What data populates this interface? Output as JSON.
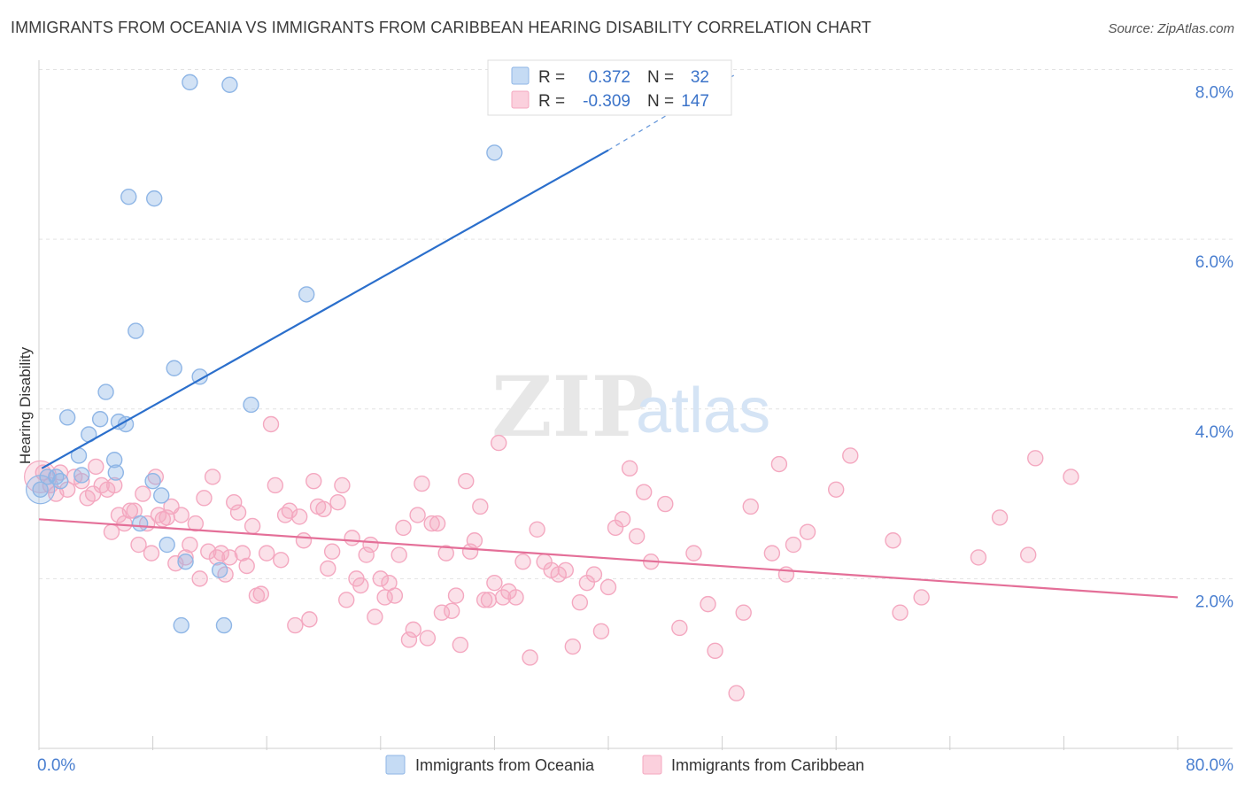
{
  "title": "IMMIGRANTS FROM OCEANIA VS IMMIGRANTS FROM CARIBBEAN HEARING DISABILITY CORRELATION CHART",
  "source": "Source: ZipAtlas.com",
  "watermark": {
    "zip": "ZIP",
    "atlas": "atlas"
  },
  "chart_data": {
    "type": "scatter",
    "xlabel": "",
    "ylabel": "Hearing Disability",
    "xlim": [
      0,
      80
    ],
    "ylim": [
      0,
      8.2
    ],
    "x_tick_labels": {
      "min": "0.0%",
      "max": "80.0%"
    },
    "y_ticks": [
      {
        "value": 2,
        "label": "2.0%"
      },
      {
        "value": 4,
        "label": "4.0%"
      },
      {
        "value": 6,
        "label": "6.0%"
      },
      {
        "value": 8,
        "label": "8.0%"
      }
    ],
    "grid": true,
    "legend_position": "top-center",
    "series": [
      {
        "name": "Immigrants from Oceania",
        "color": "#8fb6e6",
        "line_color": "#2b6fcc",
        "R": "0.372",
        "N": "32",
        "trend": {
          "x": [
            0.2,
            40
          ],
          "y": [
            3.3,
            7.05
          ],
          "dashed_to": {
            "x": 49,
            "y": 7.95
          }
        },
        "points": [
          [
            0.1,
            3.05
          ],
          [
            0.6,
            3.2
          ],
          [
            1.2,
            3.2
          ],
          [
            2.0,
            3.9
          ],
          [
            2.8,
            3.45
          ],
          [
            3.5,
            3.7
          ],
          [
            4.3,
            3.88
          ],
          [
            4.7,
            4.2
          ],
          [
            5.3,
            3.4
          ],
          [
            5.4,
            3.25
          ],
          [
            5.6,
            3.85
          ],
          [
            6.1,
            3.82
          ],
          [
            6.3,
            6.5
          ],
          [
            6.8,
            4.92
          ],
          [
            7.1,
            2.65
          ],
          [
            8.0,
            3.15
          ],
          [
            8.1,
            6.48
          ],
          [
            8.6,
            2.98
          ],
          [
            9.0,
            2.4
          ],
          [
            9.5,
            4.48
          ],
          [
            10.0,
            1.45
          ],
          [
            10.3,
            2.2
          ],
          [
            10.6,
            7.85
          ],
          [
            11.3,
            4.38
          ],
          [
            12.7,
            2.1
          ],
          [
            13.0,
            1.45
          ],
          [
            13.4,
            7.82
          ],
          [
            14.9,
            4.05
          ],
          [
            18.8,
            5.35
          ],
          [
            32.0,
            7.02
          ],
          [
            1.5,
            3.15
          ],
          [
            3.0,
            3.22
          ]
        ]
      },
      {
        "name": "Immigrants from Caribbean",
        "color": "#f4a8c0",
        "line_color": "#e46f98",
        "R": "-0.309",
        "N": "147",
        "trend": {
          "x": [
            0,
            80
          ],
          "y": [
            2.7,
            1.78
          ]
        },
        "points": [
          [
            0.3,
            3.25
          ],
          [
            0.8,
            3.1
          ],
          [
            1.2,
            3.0
          ],
          [
            1.5,
            3.25
          ],
          [
            2.0,
            3.05
          ],
          [
            2.5,
            3.2
          ],
          [
            3.0,
            3.15
          ],
          [
            3.4,
            2.95
          ],
          [
            3.8,
            3.0
          ],
          [
            4.0,
            3.32
          ],
          [
            4.4,
            3.1
          ],
          [
            4.8,
            3.05
          ],
          [
            5.1,
            2.55
          ],
          [
            5.3,
            3.1
          ],
          [
            5.6,
            2.75
          ],
          [
            6.0,
            2.65
          ],
          [
            6.4,
            2.8
          ],
          [
            6.7,
            2.8
          ],
          [
            7.0,
            2.4
          ],
          [
            7.3,
            3.0
          ],
          [
            7.6,
            2.65
          ],
          [
            7.9,
            2.3
          ],
          [
            8.2,
            3.2
          ],
          [
            8.4,
            2.75
          ],
          [
            8.7,
            2.7
          ],
          [
            9.0,
            2.72
          ],
          [
            9.3,
            2.85
          ],
          [
            9.6,
            2.18
          ],
          [
            10.0,
            2.75
          ],
          [
            10.3,
            2.25
          ],
          [
            10.6,
            2.4
          ],
          [
            11.0,
            2.65
          ],
          [
            11.3,
            2.0
          ],
          [
            11.6,
            2.95
          ],
          [
            11.9,
            2.32
          ],
          [
            12.2,
            3.2
          ],
          [
            12.5,
            2.25
          ],
          [
            12.8,
            2.3
          ],
          [
            13.1,
            2.05
          ],
          [
            13.4,
            2.25
          ],
          [
            13.7,
            2.9
          ],
          [
            14.0,
            2.78
          ],
          [
            14.3,
            2.3
          ],
          [
            14.6,
            2.15
          ],
          [
            15.0,
            2.62
          ],
          [
            15.3,
            1.8
          ],
          [
            15.6,
            1.82
          ],
          [
            16.0,
            2.3
          ],
          [
            16.3,
            3.82
          ],
          [
            16.6,
            3.1
          ],
          [
            17.0,
            2.22
          ],
          [
            17.3,
            2.75
          ],
          [
            17.6,
            2.8
          ],
          [
            18.0,
            1.45
          ],
          [
            18.3,
            2.73
          ],
          [
            18.6,
            2.45
          ],
          [
            19.0,
            1.52
          ],
          [
            19.3,
            3.15
          ],
          [
            19.6,
            2.85
          ],
          [
            20.0,
            2.82
          ],
          [
            20.3,
            2.12
          ],
          [
            20.6,
            2.32
          ],
          [
            21.0,
            2.9
          ],
          [
            21.3,
            3.1
          ],
          [
            21.6,
            1.75
          ],
          [
            22.0,
            2.48
          ],
          [
            22.3,
            2.0
          ],
          [
            22.6,
            1.92
          ],
          [
            23.0,
            2.28
          ],
          [
            23.3,
            2.4
          ],
          [
            23.6,
            1.55
          ],
          [
            24.0,
            2.0
          ],
          [
            24.3,
            1.78
          ],
          [
            24.6,
            1.95
          ],
          [
            25.0,
            1.8
          ],
          [
            25.3,
            2.28
          ],
          [
            25.6,
            2.6
          ],
          [
            26.0,
            1.28
          ],
          [
            26.3,
            1.4
          ],
          [
            26.6,
            2.75
          ],
          [
            26.9,
            3.12
          ],
          [
            27.3,
            1.3
          ],
          [
            27.6,
            2.65
          ],
          [
            28.0,
            2.65
          ],
          [
            28.3,
            1.6
          ],
          [
            28.6,
            2.3
          ],
          [
            29.0,
            1.62
          ],
          [
            29.3,
            1.8
          ],
          [
            29.6,
            1.22
          ],
          [
            30.0,
            3.15
          ],
          [
            30.3,
            2.32
          ],
          [
            30.6,
            2.45
          ],
          [
            31.0,
            2.85
          ],
          [
            31.3,
            1.75
          ],
          [
            31.6,
            1.75
          ],
          [
            32.0,
            1.95
          ],
          [
            32.3,
            3.6
          ],
          [
            32.6,
            1.78
          ],
          [
            33.0,
            1.85
          ],
          [
            33.5,
            1.78
          ],
          [
            34.0,
            2.2
          ],
          [
            34.5,
            1.07
          ],
          [
            35.0,
            2.58
          ],
          [
            35.5,
            2.2
          ],
          [
            36.0,
            2.1
          ],
          [
            36.5,
            2.05
          ],
          [
            37.0,
            2.1
          ],
          [
            37.5,
            1.2
          ],
          [
            38.0,
            1.72
          ],
          [
            38.5,
            1.95
          ],
          [
            39.0,
            2.05
          ],
          [
            39.5,
            1.38
          ],
          [
            40.0,
            1.9
          ],
          [
            40.5,
            2.6
          ],
          [
            41.0,
            2.7
          ],
          [
            41.5,
            3.3
          ],
          [
            42.0,
            2.5
          ],
          [
            42.5,
            3.02
          ],
          [
            43.0,
            2.2
          ],
          [
            44.0,
            2.88
          ],
          [
            45.0,
            1.42
          ],
          [
            46.0,
            2.3
          ],
          [
            47.0,
            1.7
          ],
          [
            47.5,
            1.15
          ],
          [
            49.0,
            0.65
          ],
          [
            49.5,
            1.6
          ],
          [
            50.0,
            2.85
          ],
          [
            51.5,
            2.3
          ],
          [
            52.0,
            3.35
          ],
          [
            52.5,
            2.05
          ],
          [
            53.0,
            2.4
          ],
          [
            54.0,
            2.55
          ],
          [
            56.0,
            3.05
          ],
          [
            57.0,
            3.45
          ],
          [
            60.0,
            2.45
          ],
          [
            60.5,
            1.6
          ],
          [
            62.0,
            1.78
          ],
          [
            66.0,
            2.25
          ],
          [
            67.5,
            2.72
          ],
          [
            69.5,
            2.28
          ],
          [
            70.0,
            3.42
          ],
          [
            72.5,
            3.2
          ]
        ]
      }
    ]
  }
}
